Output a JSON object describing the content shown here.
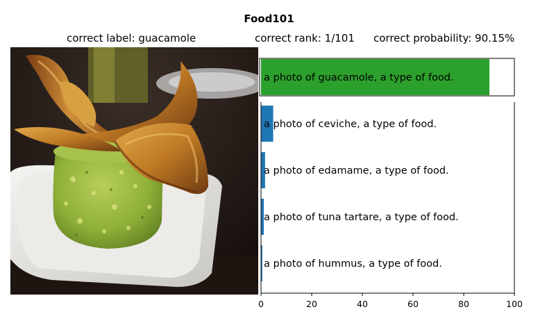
{
  "title": "Food101",
  "header": {
    "correct_label": "correct label: guacamole",
    "correct_rank": "correct rank: 1/101",
    "correct_probability": "correct probability: 90.15%"
  },
  "image": {
    "subject": "guacamole-with-plantain-chips"
  },
  "chart_data": {
    "type": "bar",
    "orientation": "horizontal",
    "categories": [
      "a photo of guacamole, a type of food.",
      "a photo of ceviche, a type of food.",
      "a photo of edamame, a type of food.",
      "a photo of tuna tartare, a type of food.",
      "a photo of hummus, a type of food."
    ],
    "values": [
      90.15,
      4.8,
      1.6,
      1.1,
      0.5
    ],
    "colors": [
      "#2ca02c",
      "#1f77b4",
      "#1f77b4",
      "#1f77b4",
      "#1f77b4"
    ],
    "xlim": [
      0,
      100
    ],
    "xticks": [
      0,
      20,
      40,
      60,
      80,
      100
    ],
    "grid": false
  }
}
